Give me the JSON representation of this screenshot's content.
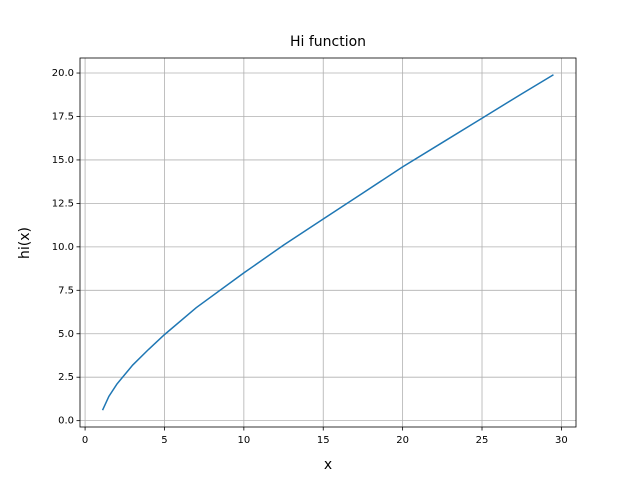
{
  "chart_data": {
    "type": "line",
    "title": "Hi function",
    "x_label": "x",
    "y_label": "hi(x)",
    "x": [
      1.1,
      1.5,
      2,
      3,
      4,
      5,
      7,
      10,
      12.5,
      15,
      17.5,
      20,
      22.5,
      25,
      27.5,
      29.5
    ],
    "series": [
      {
        "name": "hi(x)",
        "color": "#1f77b4",
        "values": [
          0.6,
          1.4,
          2.1,
          3.2,
          4.1,
          4.95,
          6.5,
          8.5,
          10.1,
          11.6,
          13.1,
          14.6,
          16.0,
          17.4,
          18.8,
          19.9
        ]
      }
    ],
    "xlim": [
      -0.32,
      30.92
    ],
    "ylim": [
      -0.365,
      20.865
    ],
    "xticks": [
      0,
      5,
      10,
      15,
      20,
      25,
      30
    ],
    "yticks": [
      {
        "value": 0,
        "label": "0.0"
      },
      2.5,
      {
        "value": 5,
        "label": "5.0"
      },
      7.5,
      {
        "value": 10,
        "label": "10.0"
      },
      12.5,
      {
        "value": 15,
        "label": "15.0"
      },
      17.5,
      {
        "value": 20,
        "label": "20.0"
      }
    ],
    "grid": true
  }
}
